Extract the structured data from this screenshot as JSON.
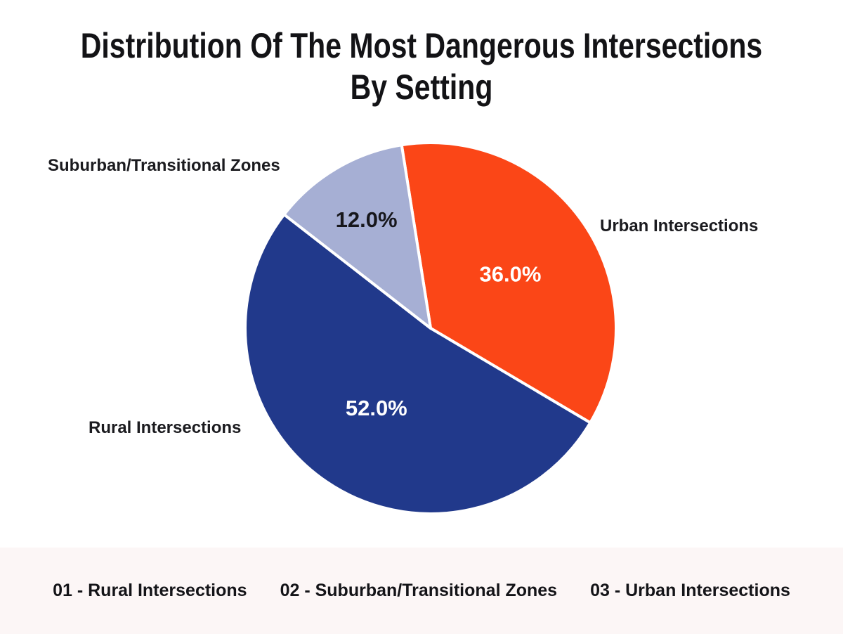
{
  "chart_data": {
    "type": "pie",
    "title": "Distribution Of The Most Dangerous Intersections By Setting",
    "title_lines": [
      "Distribution Of The Most Dangerous Intersections",
      "By Setting"
    ],
    "slices": [
      {
        "label": "Urban Intersections",
        "value": 36.0,
        "percent_label": "36.0%",
        "color": "#FB4617",
        "percent_text_color": "#FFFFFF",
        "percent_label_radius": 0.52
      },
      {
        "label": "Rural Intersections",
        "value": 52.0,
        "percent_label": "52.0%",
        "color": "#21398B",
        "percent_text_color": "#FFFFFF",
        "percent_label_radius": 0.52
      },
      {
        "label": "Suburban/Transitional Zones",
        "value": 12.0,
        "percent_label": "12.0%",
        "color": "#A6AFD4",
        "percent_text_color": "#17171C",
        "percent_label_radius": 0.68
      }
    ],
    "layout": {
      "start_angle_deg": -9,
      "direction": "clockwise",
      "slice_separator_color": "#FFFFFF",
      "labels_position": "outside",
      "percents_position": "inside",
      "legend_position": "bottom"
    }
  },
  "footer": {
    "items": [
      "01 - Rural Intersections",
      "02 - Suburban/Transitional Zones",
      "03 - Urban Intersections"
    ],
    "background_color": "#FCF6F6"
  },
  "colors": {
    "page_background": "#FFFFFF",
    "title_text": "#131316",
    "slice_label_text": "#1B1B1F"
  }
}
